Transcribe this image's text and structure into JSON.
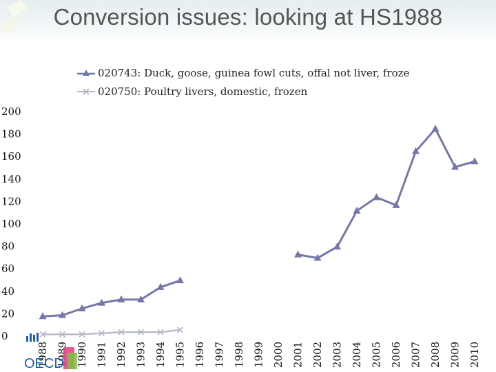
{
  "title": "Conversion issues: looking at HS1988",
  "colors": {
    "series1": "#7477a8",
    "series2": "#b2b6c9",
    "axis_text": "#111111"
  },
  "logo": {
    "text": "OECD"
  },
  "chart_data": {
    "type": "line",
    "title": "Conversion issues: looking at HS1988",
    "xlabel": "",
    "ylabel": "",
    "ylim": [
      0,
      200
    ],
    "yticks": [
      0,
      20,
      40,
      60,
      80,
      100,
      120,
      140,
      160,
      180,
      200
    ],
    "categories": [
      "1988",
      "1989",
      "1990",
      "1991",
      "1992",
      "1993",
      "1994",
      "1995",
      "1996",
      "1997",
      "1998",
      "1999",
      "2000",
      "2001",
      "2002",
      "2003",
      "2004",
      "2005",
      "2006",
      "2007",
      "2008",
      "2009",
      "2010"
    ],
    "legend_position": "top-left",
    "series": [
      {
        "name": "020743: Duck, goose, guinea fowl cuts, offal not liver, froze",
        "marker": "triangle",
        "values": [
          17,
          18,
          24,
          29,
          32,
          32,
          43,
          49,
          null,
          null,
          null,
          null,
          null,
          72,
          69,
          79,
          111,
          123,
          116,
          164,
          184,
          150,
          155
        ]
      },
      {
        "name": "020750: Poultry livers, domestic, frozen",
        "marker": "x",
        "values": [
          1,
          1,
          1,
          2,
          3,
          3,
          3,
          5,
          null,
          null,
          null,
          null,
          null,
          null,
          null,
          null,
          null,
          null,
          null,
          null,
          null,
          null,
          null
        ]
      }
    ]
  }
}
